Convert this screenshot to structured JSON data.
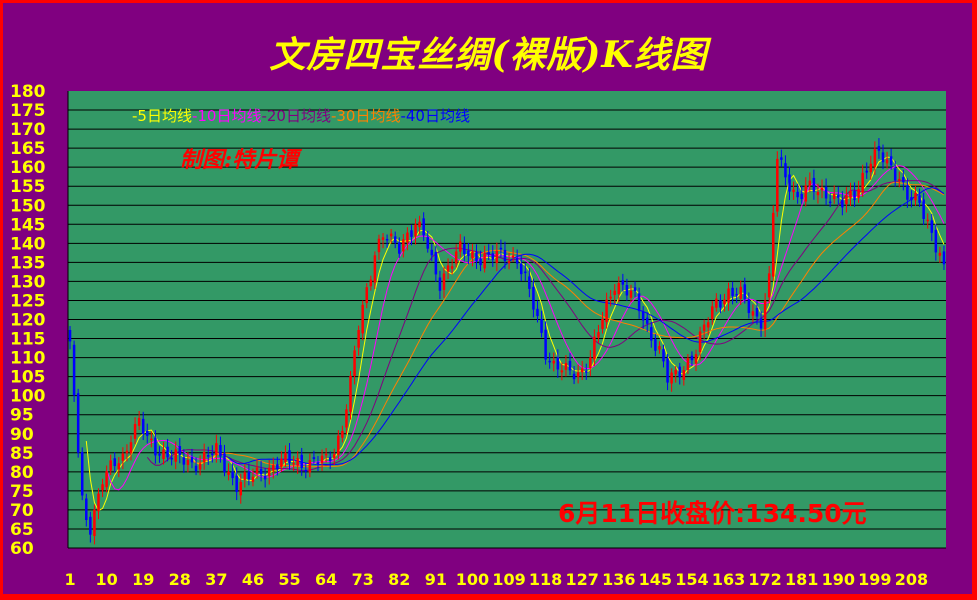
{
  "title": "文房四宝丝绸(裸版)K线图",
  "credit": "制图:特片谭",
  "close_note": "6月11日收盘价:134.50元",
  "colors": {
    "background": "#800080",
    "border": "#ff0000",
    "plot": "#339966",
    "up": "#ff0000",
    "down": "#0000ff",
    "axis_text": "#ffff00"
  },
  "chart_data": {
    "type": "candlestick",
    "ylim": [
      60,
      180
    ],
    "yticks": [
      60,
      65,
      70,
      75,
      80,
      85,
      90,
      95,
      100,
      105,
      110,
      115,
      120,
      125,
      130,
      135,
      140,
      145,
      150,
      155,
      160,
      165,
      170,
      175,
      180
    ],
    "xticks": [
      "1",
      "10",
      "19",
      "28",
      "37",
      "46",
      "55",
      "64",
      "73",
      "82",
      "91",
      "100",
      "109",
      "118",
      "127",
      "136",
      "145",
      "154",
      "163",
      "172",
      "181",
      "190",
      "199",
      "208"
    ],
    "grid": true,
    "legend_position": "top-left",
    "series": [
      {
        "name": "5日均线",
        "prefix": "-",
        "color": "#ffff00"
      },
      {
        "name": "10日均线",
        "prefix": "-",
        "color": "#ff00ff"
      },
      {
        "name": "20日均线",
        "prefix": "-",
        "color": "#800080"
      },
      {
        "name": "30日均线",
        "prefix": "-",
        "color": "#ff8000"
      },
      {
        "name": "40日均线",
        "prefix": "-",
        "color": "#0000ff"
      }
    ],
    "anchors": [
      [
        1,
        112
      ],
      [
        2,
        100
      ],
      [
        3,
        85
      ],
      [
        4,
        72
      ],
      [
        5,
        68
      ],
      [
        6,
        66
      ],
      [
        7,
        70
      ],
      [
        8,
        74
      ],
      [
        9,
        78
      ],
      [
        10,
        79
      ],
      [
        12,
        82
      ],
      [
        14,
        84
      ],
      [
        16,
        90
      ],
      [
        18,
        93
      ],
      [
        20,
        88
      ],
      [
        22,
        86
      ],
      [
        25,
        85
      ],
      [
        28,
        83
      ],
      [
        31,
        82
      ],
      [
        34,
        84
      ],
      [
        37,
        85
      ],
      [
        40,
        80
      ],
      [
        42,
        77
      ],
      [
        45,
        78
      ],
      [
        48,
        80
      ],
      [
        52,
        82
      ],
      [
        56,
        83
      ],
      [
        60,
        82
      ],
      [
        64,
        83
      ],
      [
        66,
        86
      ],
      [
        68,
        92
      ],
      [
        70,
        103
      ],
      [
        72,
        118
      ],
      [
        74,
        128
      ],
      [
        76,
        138
      ],
      [
        78,
        142
      ],
      [
        80,
        140
      ],
      [
        82,
        139
      ],
      [
        84,
        143
      ],
      [
        86,
        145
      ],
      [
        88,
        142
      ],
      [
        90,
        135
      ],
      [
        92,
        130
      ],
      [
        94,
        134
      ],
      [
        97,
        138
      ],
      [
        100,
        137
      ],
      [
        104,
        136
      ],
      [
        108,
        137
      ],
      [
        111,
        136
      ],
      [
        113,
        130
      ],
      [
        116,
        120
      ],
      [
        118,
        112
      ],
      [
        120,
        108
      ],
      [
        123,
        106
      ],
      [
        126,
        106
      ],
      [
        129,
        110
      ],
      [
        132,
        120
      ],
      [
        135,
        130
      ],
      [
        137,
        129
      ],
      [
        140,
        125
      ],
      [
        143,
        118
      ],
      [
        146,
        112
      ],
      [
        148,
        104
      ],
      [
        150,
        105
      ],
      [
        152,
        108
      ],
      [
        155,
        112
      ],
      [
        158,
        120
      ],
      [
        160,
        125
      ],
      [
        163,
        127
      ],
      [
        166,
        126
      ],
      [
        169,
        122
      ],
      [
        171,
        120
      ],
      [
        173,
        130
      ],
      [
        174,
        148
      ],
      [
        175,
        162
      ],
      [
        177,
        158
      ],
      [
        180,
        152
      ],
      [
        182,
        154
      ],
      [
        185,
        154
      ],
      [
        188,
        153
      ],
      [
        191,
        150
      ],
      [
        194,
        153
      ],
      [
        196,
        158
      ],
      [
        198,
        162
      ],
      [
        200,
        163
      ],
      [
        202,
        161
      ],
      [
        205,
        158
      ],
      [
        207,
        152
      ],
      [
        210,
        150
      ],
      [
        212,
        146
      ],
      [
        214,
        140
      ],
      [
        216,
        135
      ]
    ]
  }
}
